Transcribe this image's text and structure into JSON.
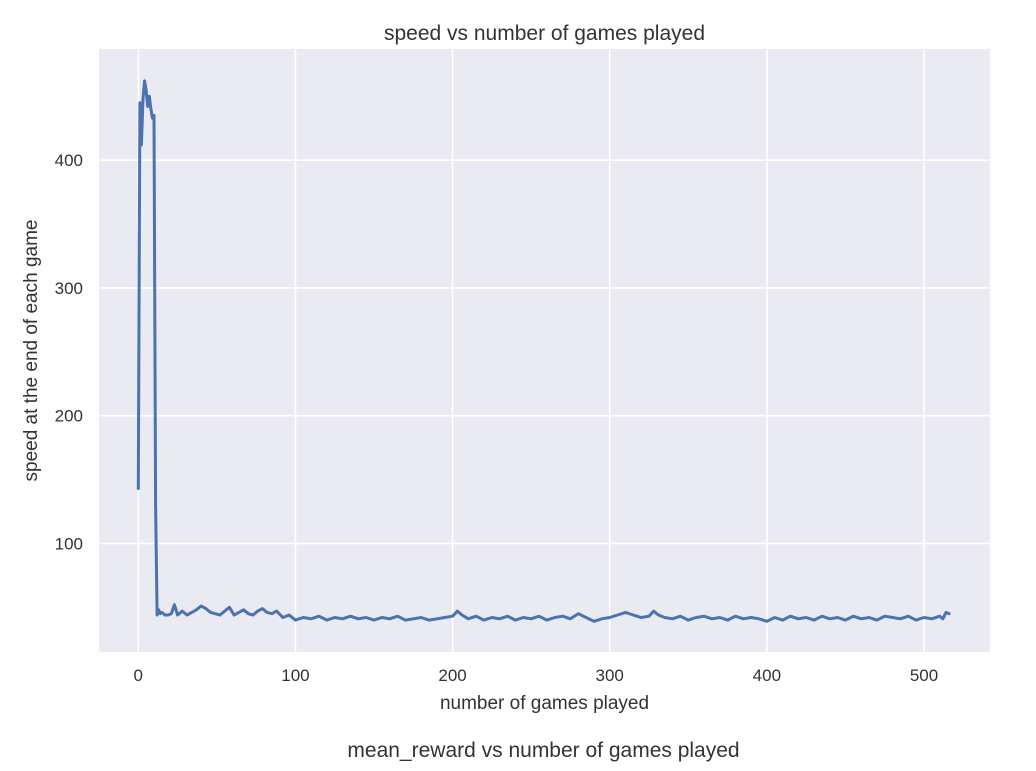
{
  "chart_data": {
    "type": "line",
    "title": "speed vs number of games played",
    "xlabel": "number of games played",
    "ylabel": "speed at the end of each game",
    "xlim": [
      -25,
      542
    ],
    "ylim": [
      15,
      487
    ],
    "xticks": [
      0,
      100,
      200,
      300,
      400,
      500
    ],
    "yticks": [
      100,
      200,
      300,
      400
    ],
    "grid": true,
    "background": "#eaeaf2",
    "series": [
      {
        "color": "#4c72b0",
        "x": [
          0,
          1,
          2,
          3,
          4,
          5,
          6,
          7,
          8,
          9,
          10,
          11,
          12,
          13,
          14,
          15,
          17,
          19,
          21,
          23,
          25,
          28,
          31,
          34,
          37,
          40,
          43,
          46,
          49,
          52,
          55,
          58,
          61,
          64,
          67,
          70,
          73,
          76,
          79,
          82,
          85,
          88,
          92,
          96,
          100,
          105,
          110,
          115,
          120,
          125,
          130,
          135,
          140,
          145,
          150,
          155,
          160,
          165,
          170,
          175,
          180,
          185,
          190,
          195,
          200,
          203,
          206,
          210,
          215,
          220,
          225,
          230,
          235,
          240,
          245,
          250,
          255,
          260,
          265,
          270,
          275,
          280,
          285,
          290,
          295,
          300,
          305,
          310,
          315,
          320,
          325,
          328,
          331,
          335,
          340,
          345,
          350,
          355,
          360,
          365,
          370,
          375,
          380,
          385,
          390,
          395,
          400,
          405,
          410,
          415,
          420,
          425,
          430,
          435,
          440,
          445,
          450,
          455,
          460,
          465,
          470,
          475,
          480,
          485,
          490,
          495,
          500,
          505,
          510,
          512,
          514,
          516
        ],
        "y": [
          143,
          445,
          412,
          448,
          462,
          455,
          442,
          450,
          440,
          433,
          435,
          130,
          44,
          48,
          45,
          46,
          44,
          44,
          45,
          52,
          44,
          47,
          44,
          46,
          48,
          51,
          49,
          46,
          45,
          44,
          47,
          50,
          44,
          46,
          48,
          45,
          44,
          47,
          49,
          46,
          45,
          47,
          42,
          44,
          40,
          42,
          41,
          43,
          40,
          42,
          41,
          43,
          41,
          42,
          40,
          42,
          41,
          43,
          40,
          41,
          42,
          40,
          41,
          42,
          43,
          47,
          44,
          41,
          43,
          40,
          42,
          41,
          43,
          40,
          42,
          41,
          43,
          40,
          42,
          43,
          41,
          45,
          42,
          39,
          41,
          42,
          44,
          46,
          44,
          42,
          43,
          47,
          44,
          42,
          41,
          43,
          40,
          42,
          43,
          41,
          42,
          40,
          43,
          41,
          42,
          41,
          39,
          42,
          40,
          43,
          41,
          42,
          40,
          43,
          41,
          42,
          40,
          43,
          41,
          42,
          40,
          43,
          42,
          41,
          43,
          40,
          42,
          41,
          43,
          41,
          46,
          45
        ]
      }
    ]
  },
  "next_chart": {
    "title": "mean_reward vs number of games played"
  }
}
